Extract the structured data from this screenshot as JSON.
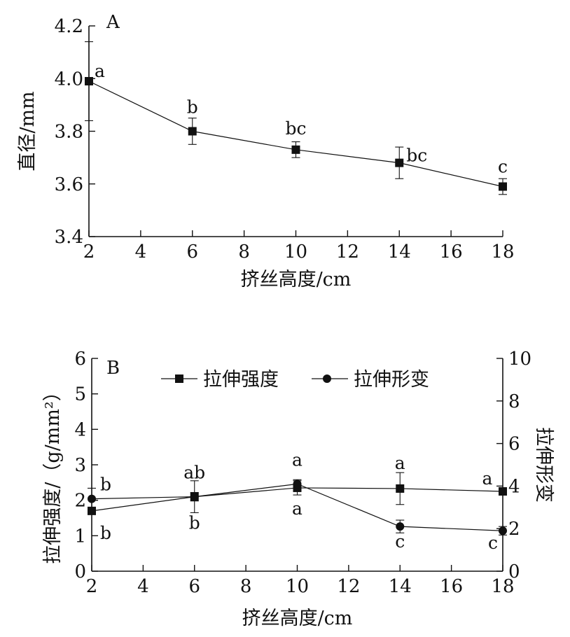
{
  "chart_data": [
    {
      "type": "line",
      "panel_label": "A",
      "xlabel": "挤丝高度/cm",
      "ylabel": "直径/mm",
      "x_ticks": [
        "2",
        "4",
        "6",
        "8",
        "10",
        "12",
        "14",
        "16",
        "18"
      ],
      "y_ticks": [
        "3.4",
        "3.6",
        "3.8",
        "4.0",
        "4.2"
      ],
      "xlim": [
        2,
        18
      ],
      "ylim": [
        3.4,
        4.2
      ],
      "grid": false,
      "series": [
        {
          "marker": "square",
          "x": [
            2,
            6,
            10,
            14,
            18
          ],
          "y": [
            3.99,
            3.8,
            3.73,
            3.68,
            3.59
          ],
          "err": [
            0.15,
            0.05,
            0.03,
            0.06,
            0.03
          ],
          "labels": [
            "a",
            "b",
            "bc",
            "bc",
            "c"
          ]
        }
      ]
    },
    {
      "type": "line",
      "panel_label": "B",
      "xlabel": "挤丝高度/cm",
      "ylabel_left": "拉伸强度/（g/mm²）",
      "ylabel_right": "拉伸形变",
      "x_ticks": [
        "2",
        "4",
        "6",
        "8",
        "10",
        "12",
        "14",
        "16",
        "18"
      ],
      "y_ticks_left": [
        "0",
        "1",
        "2",
        "3",
        "4",
        "5",
        "6"
      ],
      "y_ticks_right": [
        "0",
        "2",
        "4",
        "6",
        "8",
        "10"
      ],
      "xlim": [
        2,
        18
      ],
      "ylim_left": [
        0,
        6
      ],
      "ylim_right": [
        0,
        10
      ],
      "grid": false,
      "legend_position": "top",
      "series": [
        {
          "name": "拉伸强度",
          "marker": "square",
          "axis": "left",
          "x": [
            2,
            6,
            10,
            14,
            18
          ],
          "y": [
            1.7,
            2.1,
            2.35,
            2.33,
            2.25
          ],
          "err": [
            0.1,
            0.45,
            0.2,
            0.45,
            0.1
          ],
          "labels": [
            "b",
            "b",
            "a",
            "a",
            "a"
          ]
        },
        {
          "name": "拉伸形变",
          "marker": "circle",
          "axis": "right",
          "x": [
            2,
            6,
            10,
            14,
            18
          ],
          "y": [
            3.4,
            3.5,
            4.1,
            2.1,
            1.9
          ],
          "err": [
            0.5,
            0.2,
            0.2,
            0.3,
            0.2
          ],
          "labels": [
            "b",
            "ab",
            "a",
            "c",
            "c"
          ]
        }
      ]
    }
  ]
}
